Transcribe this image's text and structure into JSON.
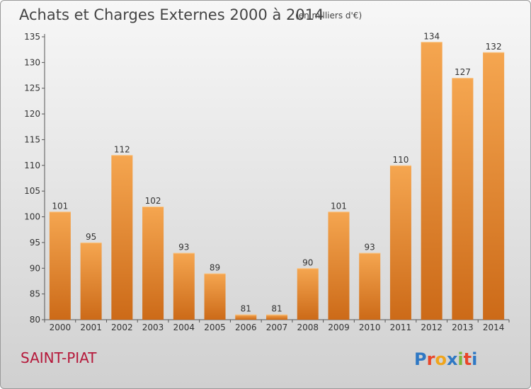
{
  "chart_data": {
    "type": "bar",
    "title": "Achats et Charges Externes 2000 à 2014",
    "unit_note": "(en milliers d'€)",
    "categories": [
      "2000",
      "2001",
      "2002",
      "2003",
      "2004",
      "2005",
      "2006",
      "2007",
      "2008",
      "2009",
      "2010",
      "2011",
      "2012",
      "2013",
      "2014"
    ],
    "values": [
      101,
      95,
      112,
      102,
      93,
      89,
      81,
      81,
      90,
      101,
      93,
      110,
      134,
      127,
      132
    ],
    "ylim": [
      80,
      135
    ],
    "yticks": [
      80,
      85,
      90,
      95,
      100,
      105,
      110,
      115,
      120,
      125,
      130,
      135
    ],
    "grid": false,
    "bar_color_top": "#f5a650",
    "bar_color_bottom": "#cc6a18"
  },
  "footer": {
    "city": "SAINT-PIAT",
    "brand": "Proxiti",
    "brand_colors": [
      "#2f78c4",
      "#e8462a",
      "#f0a51c",
      "#2f78c4",
      "#7cb83a",
      "#e8462a",
      "#2f78c4"
    ]
  }
}
